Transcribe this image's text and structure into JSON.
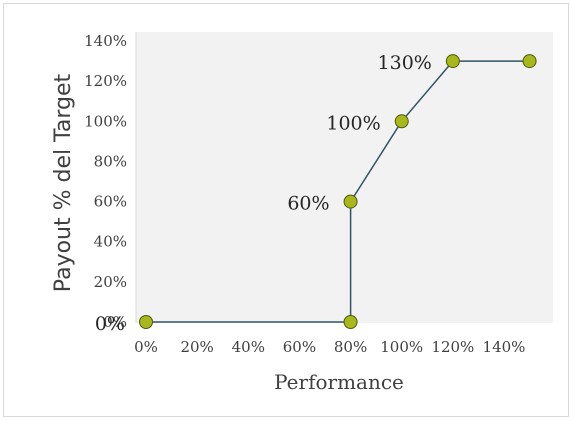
{
  "chart_data": {
    "type": "line",
    "title": "",
    "xlabel": "Performance",
    "ylabel": "Payout  % del Target",
    "xlim": [
      0,
      140
    ],
    "ylim": [
      0,
      140
    ],
    "x_ticks": [
      "0%",
      "20%",
      "40%",
      "60%",
      "80%",
      "100%",
      "120%",
      "140%"
    ],
    "y_ticks": [
      "0%",
      "20%",
      "40%",
      "60%",
      "80%",
      "100%",
      "120%",
      "140%"
    ],
    "grid": false,
    "legend": "none",
    "series": [
      {
        "x": [
          0,
          80,
          80,
          100,
          120,
          150
        ],
        "y": [
          0,
          0,
          60,
          100,
          130,
          130
        ],
        "labels": [
          "0%",
          "",
          "60%",
          "100%",
          "130%",
          ""
        ]
      }
    ],
    "colors": {
      "plot_area": "#f2f2f2",
      "line": "#2f5564",
      "marker_fill": "#a8b81c",
      "marker_stroke": "#4d5a0c"
    }
  }
}
